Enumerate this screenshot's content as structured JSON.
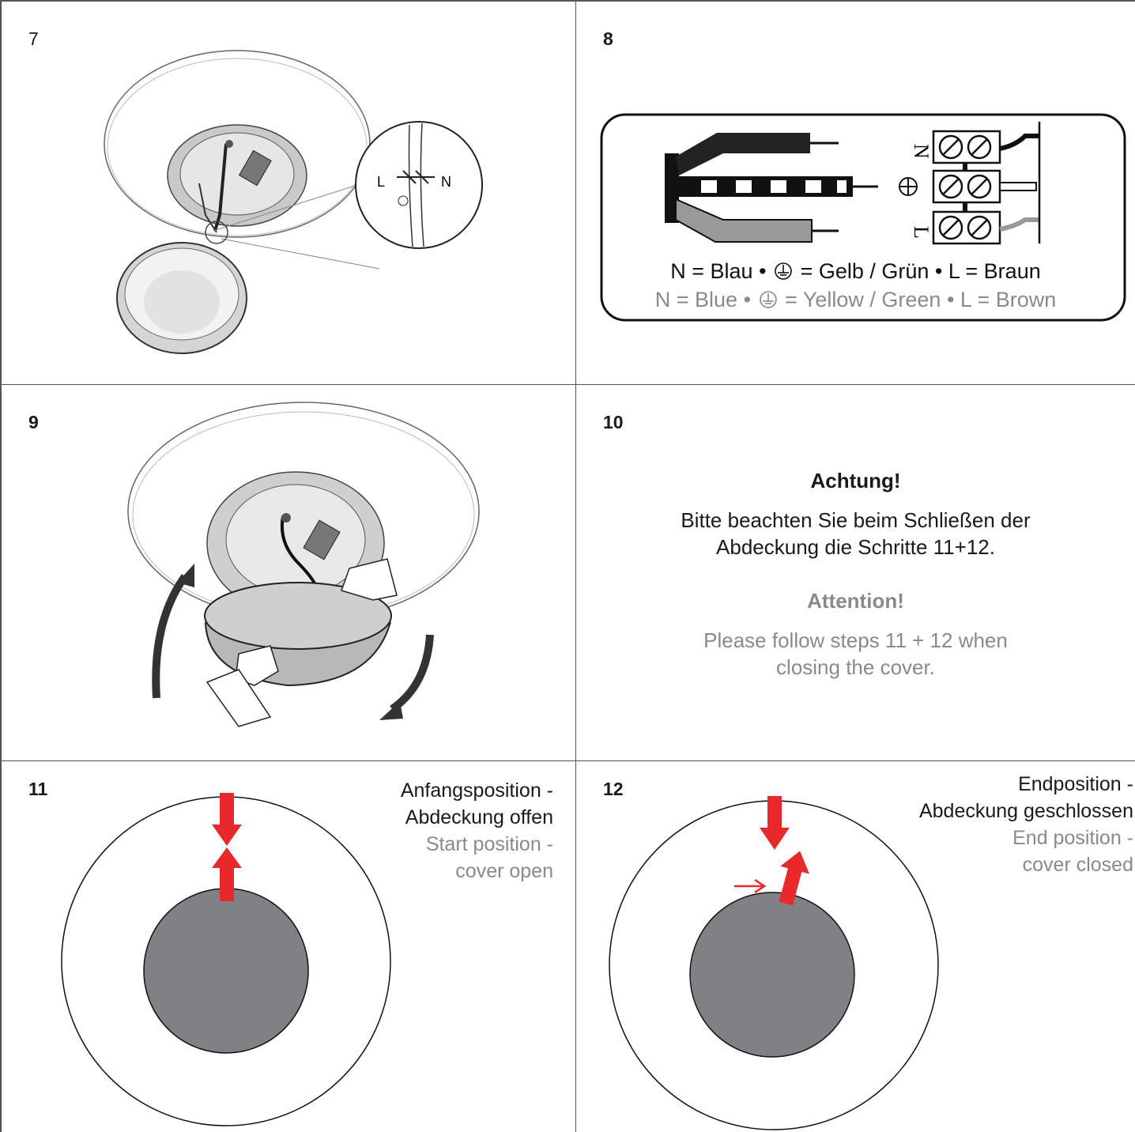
{
  "steps": {
    "s7": "7",
    "s8": "8",
    "s9": "9",
    "s10": "10",
    "s11": "11",
    "s12": "12"
  },
  "step7": {
    "label_l": "L",
    "label_n": "N"
  },
  "step8": {
    "terminal_n": "N",
    "terminal_l": "L",
    "legend_de": {
      "n": "N = Blau",
      "sep1": "•",
      "pe": "= Gelb / Grün",
      "sep2": "•",
      "l": "L = Braun"
    },
    "legend_en": {
      "n": "N = Blue",
      "sep1": "•",
      "pe": "= Yellow / Green",
      "sep2": "•",
      "l": "L = Brown"
    }
  },
  "step10": {
    "title_de": "Achtung!",
    "text_de_line1": "Bitte beachten Sie beim Schließen der",
    "text_de_line2": "Abdeckung die Schritte 11+12.",
    "title_en": "Attention!",
    "text_en_line1": "Please follow steps 11 + 12 when",
    "text_en_line2": "closing the cover."
  },
  "step11": {
    "de_line1": "Anfangsposition -",
    "de_line2": "Abdeckung offen",
    "en_line1": "Start position -",
    "en_line2": "cover open"
  },
  "step12": {
    "de_line1": "Endposition -",
    "de_line2": "Abdeckung geschlossen",
    "en_line1": "End position -",
    "en_line2": "cover closed"
  },
  "colors": {
    "arrow_red": "#e8282b",
    "cover_grey": "#808185",
    "caption_grey": "#8a8a8a",
    "border": "#555555"
  }
}
